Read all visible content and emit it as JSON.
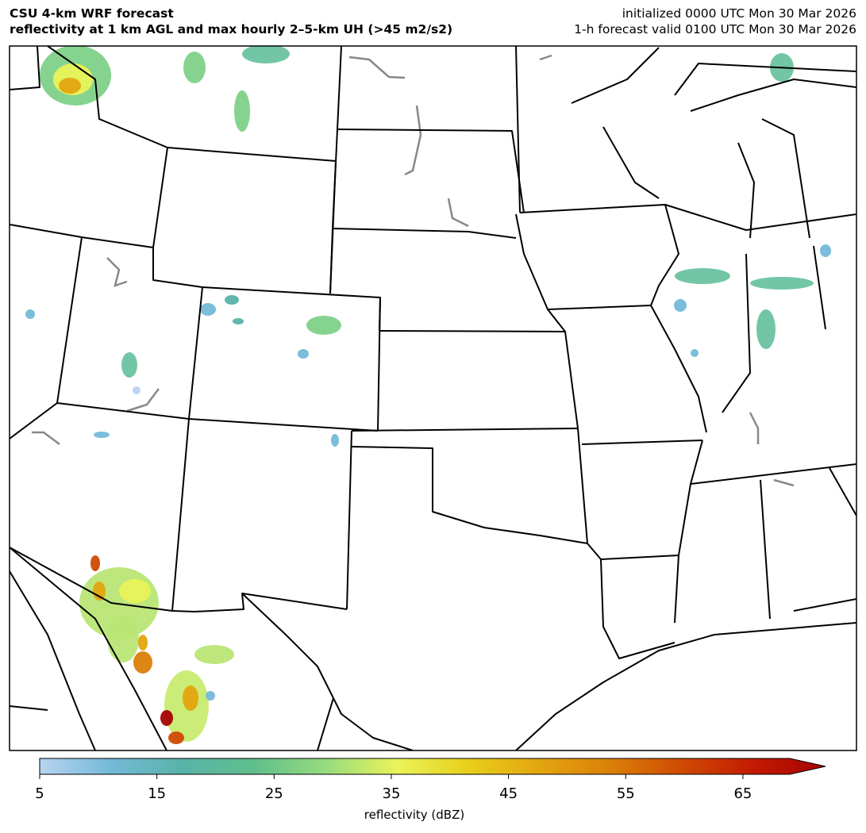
{
  "header": {
    "title_line1": "CSU 4-km WRF forecast",
    "title_line2": "reflectivity at 1 km AGL and max hourly 2–5-km UH (>45 m2/s2)",
    "init_text": "initialized 0000 UTC Mon 30 Mar 2026",
    "valid_text": "1-h forecast valid 0100 UTC Mon 30 Mar 2026"
  },
  "colorbar": {
    "label": "reflectivity (dBZ)",
    "ticks": [
      "5",
      "15",
      "25",
      "35",
      "45",
      "55",
      "65"
    ],
    "range": [
      5,
      69
    ],
    "extend": "max",
    "colors": [
      "#b7d4ef",
      "#74b9d8",
      "#58b3a8",
      "#5fbf8c",
      "#96db7e",
      "#e9f35a",
      "#e8cf1a",
      "#e3a510",
      "#da7f08",
      "#cf4a03",
      "#c21a02",
      "#a80202"
    ]
  },
  "map": {
    "region": "Western and Central United States",
    "border_color": "#000000",
    "lake_color": "#888888"
  }
}
